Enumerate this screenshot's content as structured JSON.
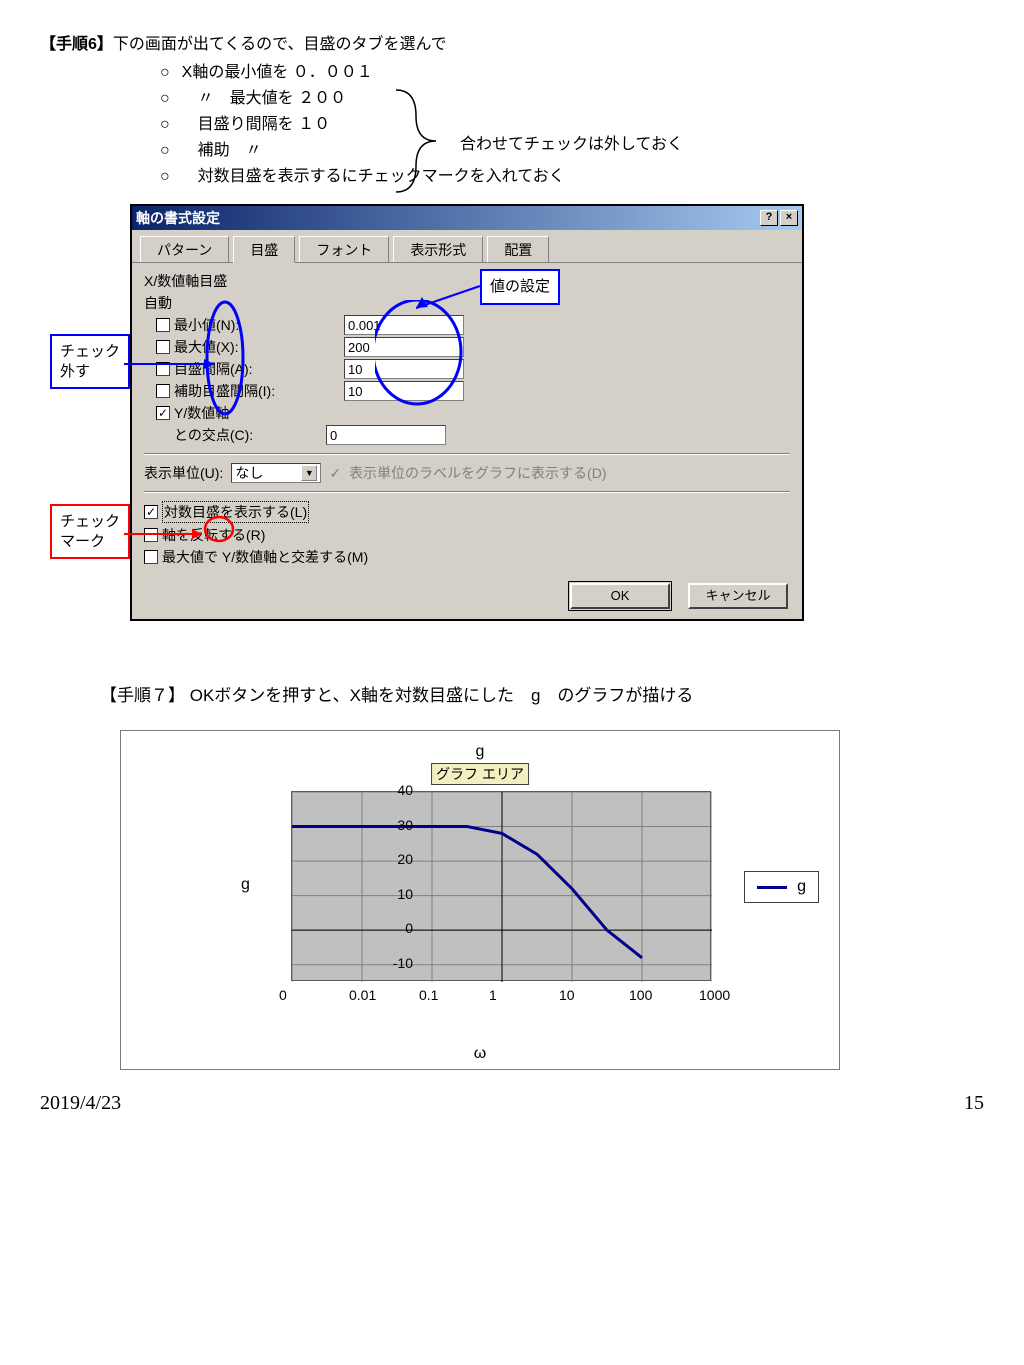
{
  "step6": {
    "title": "【手順6】",
    "lead": "下の画面が出てくるので、目盛のタブを選んで",
    "bullets": [
      "X軸の最小値を ０．００１",
      "　〃　最大値を ２００",
      "　目盛り間隔を １０",
      "　補助　〃",
      "　対数目盛を表示するにチェックマークを入れておく"
    ],
    "brace_note": "合わせてチェックは外しておく"
  },
  "callouts": {
    "uncheck": "チェック\n外す",
    "check": "チェック\nマーク",
    "set_value": "値の設定"
  },
  "dialog": {
    "title": "軸の書式設定",
    "help": "?",
    "close": "×",
    "tabs": [
      "パターン",
      "目盛",
      "フォント",
      "表示形式",
      "配置"
    ],
    "active_tab": 1,
    "heading": "X/数値軸目盛",
    "auto_label": "自動",
    "rows": [
      {
        "label": "最小値(N):",
        "value": "0.001",
        "checked": false
      },
      {
        "label": "最大値(X):",
        "value": "200",
        "checked": false
      },
      {
        "label": "目盛間隔(A):",
        "value": "10",
        "checked": false
      },
      {
        "label": "補助目盛間隔(I):",
        "value": "10",
        "checked": false
      }
    ],
    "yaxis_row": {
      "label": "Y/数値軸",
      "checked": true
    },
    "cross_label": "との交点(C):",
    "cross_value": "0",
    "unit_label": "表示単位(U):",
    "unit_value": "なし",
    "unit_check_label": "表示単位のラベルをグラフに表示する(D)",
    "opt_log": "対数目盛を表示する(L)",
    "opt_rev": "軸を反転する(R)",
    "opt_cross": "最大値で Y/数値軸と交差する(M)",
    "ok": "OK",
    "cancel": "キャンセル"
  },
  "step7": {
    "text": "【手順７】 OKボタンを押すと、X軸を対数目盛にした　g　のグラフが描ける"
  },
  "chart": {
    "type": "line",
    "title": "g",
    "plot_area_tag": "グラフ エリア",
    "y_axis_title": "g",
    "x_axis_title": "ω",
    "legend_label": "g",
    "y_ticks": [
      -10,
      0,
      10,
      20,
      30,
      40
    ],
    "ylim": [
      -15,
      40
    ],
    "x_ticks_labels": [
      "0",
      "0.01",
      "0.1",
      "1",
      "10",
      "100",
      "1000"
    ],
    "x_ticks_logpos": [
      -3,
      -2,
      -1,
      0,
      1,
      2,
      3
    ],
    "line_color": "#00008b",
    "line_width": 3,
    "plot_bg": "#c0c0c0",
    "grid_color": "#808080",
    "series": [
      {
        "logx": -3.0,
        "y": 30
      },
      {
        "logx": -2.0,
        "y": 30
      },
      {
        "logx": -1.0,
        "y": 30
      },
      {
        "logx": -0.5,
        "y": 30
      },
      {
        "logx": 0.0,
        "y": 28
      },
      {
        "logx": 0.5,
        "y": 22
      },
      {
        "logx": 1.0,
        "y": 12
      },
      {
        "logx": 1.5,
        "y": 0
      },
      {
        "logx": 2.0,
        "y": -8
      }
    ]
  },
  "footer": {
    "date": "2019/4/23",
    "page": "15"
  },
  "annotation_colors": {
    "blue": "#0000ff",
    "red": "#ff0000"
  }
}
